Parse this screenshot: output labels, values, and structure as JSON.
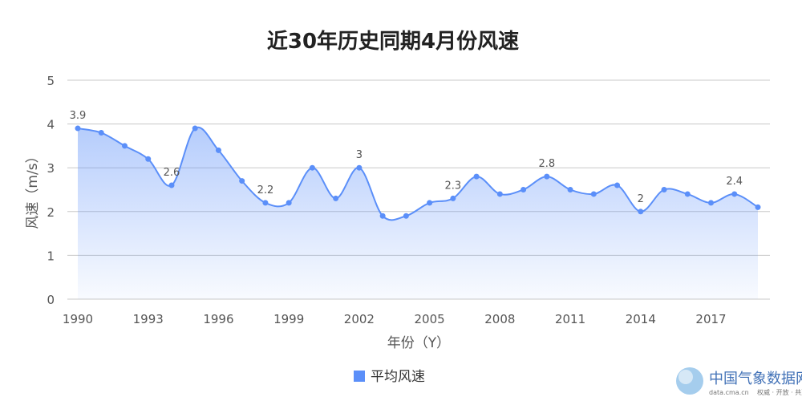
{
  "chart_data": {
    "type": "area",
    "title": "近30年历史同期4月份风速",
    "xlabel": "年份（Y）",
    "ylabel": "风速（m/s）",
    "ylim": [
      0,
      5
    ],
    "yticks": [
      "0",
      "1",
      "2",
      "3",
      "4",
      "5"
    ],
    "xticks": [
      "1990",
      "1993",
      "1996",
      "1999",
      "2002",
      "2005",
      "2008",
      "2011",
      "2014",
      "2017"
    ],
    "grid": true,
    "legend_position": "bottom-center",
    "x": [
      1990,
      1991,
      1992,
      1993,
      1994,
      1995,
      1996,
      1997,
      1998,
      1999,
      2000,
      2001,
      2002,
      2003,
      2004,
      2005,
      2006,
      2007,
      2008,
      2009,
      2010,
      2011,
      2012,
      2013,
      2014,
      2015,
      2016,
      2017,
      2018,
      2019
    ],
    "series": [
      {
        "name": "平均风速",
        "color": "#5b8ff9",
        "values": [
          3.9,
          3.8,
          3.5,
          3.2,
          2.6,
          3.9,
          3.4,
          2.7,
          2.2,
          2.2,
          3.0,
          2.3,
          3.0,
          1.9,
          1.9,
          2.2,
          2.3,
          2.8,
          2.4,
          2.5,
          2.8,
          2.5,
          2.4,
          2.6,
          2.0,
          2.5,
          2.4,
          2.2,
          2.4,
          2.1
        ]
      }
    ],
    "data_labels": [
      {
        "x": 1990,
        "text": "3.9"
      },
      {
        "x": 1994,
        "text": "2.6"
      },
      {
        "x": 1998,
        "text": "2.2"
      },
      {
        "x": 2002,
        "text": "3"
      },
      {
        "x": 2006,
        "text": "2.3"
      },
      {
        "x": 2010,
        "text": "2.8"
      },
      {
        "x": 2014,
        "text": "2"
      },
      {
        "x": 2018,
        "text": "2.4"
      }
    ]
  },
  "watermark": {
    "name": "中国气象数据网",
    "url": "data.cma.cn",
    "slogan": "权威 · 开放 · 共赢"
  }
}
